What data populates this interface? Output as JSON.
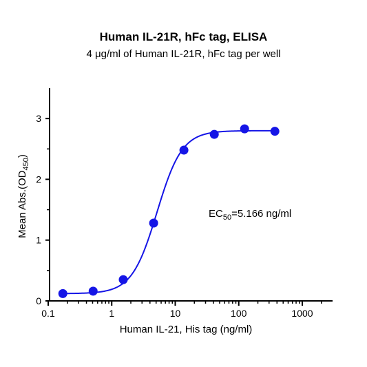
{
  "chart_data": {
    "type": "scatter",
    "title": "Human IL-21R, hFc tag, ELISA",
    "subtitle": "4 μg/ml of Human IL-21R, hFc tag per well",
    "xlabel": "Human IL-21, His tag (ng/ml)",
    "ylabel_main": "Mean Abs.(OD",
    "ylabel_sub": "450",
    "ylabel_close": ")",
    "xscale": "log",
    "xlim": [
      0.1,
      3000
    ],
    "ylim": [
      0,
      3.5
    ],
    "x_ticks": [
      0.1,
      1,
      10,
      100,
      1000
    ],
    "x_tick_labels": [
      "0.1",
      "1",
      "10",
      "100",
      "1000"
    ],
    "y_ticks": [
      0,
      1,
      2,
      3
    ],
    "y_tick_labels": [
      "0",
      "1",
      "2",
      "3"
    ],
    "grid": false,
    "series": [
      {
        "x": [
          0.17,
          0.51,
          1.52,
          4.57,
          13.7,
          41.2,
          123.5,
          370.4
        ],
        "y": [
          0.12,
          0.16,
          0.35,
          1.28,
          2.48,
          2.74,
          2.83,
          2.79
        ],
        "color": "#1515e6",
        "fit": "4PL",
        "fit_params": {
          "bottom": 0.12,
          "top": 2.8,
          "ec50": 5.166,
          "hill": 2.2
        }
      }
    ],
    "annotation": {
      "text_main": "EC",
      "text_sub": "50",
      "text_rest": "=5.166 ng/ml"
    }
  }
}
